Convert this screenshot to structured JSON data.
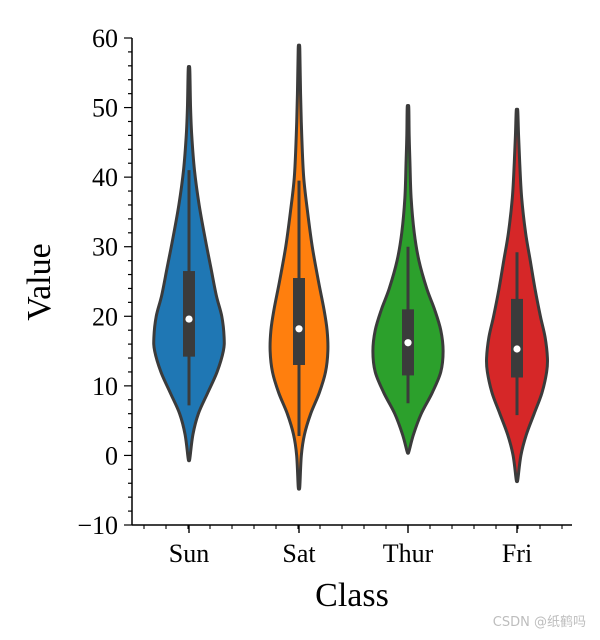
{
  "chart_data": {
    "type": "violin",
    "xlabel": "Class",
    "ylabel": "Value",
    "ylim": [
      -10,
      60
    ],
    "yticks": [
      -10,
      0,
      10,
      20,
      30,
      40,
      50,
      60
    ],
    "ytick_labels": [
      "−10",
      "0",
      "10",
      "20",
      "30",
      "40",
      "50",
      "60"
    ],
    "categories": [
      "Sun",
      "Sat",
      "Thur",
      "Fri"
    ],
    "series": [
      {
        "name": "Sun",
        "color": "#1f77b4",
        "min": -0.5,
        "max": 55.5,
        "q1": 14.2,
        "median": 19.6,
        "q3": 26.5,
        "whisker_low": 7.2,
        "whisker_high": 41,
        "density": [
          [
            -0.5,
            0.01
          ],
          [
            3,
            0.05
          ],
          [
            6,
            0.12
          ],
          [
            9,
            0.24
          ],
          [
            12,
            0.36
          ],
          [
            15,
            0.44
          ],
          [
            17,
            0.45
          ],
          [
            20,
            0.42
          ],
          [
            23,
            0.35
          ],
          [
            27,
            0.28
          ],
          [
            31,
            0.21
          ],
          [
            36,
            0.13
          ],
          [
            41,
            0.07
          ],
          [
            46,
            0.035
          ],
          [
            50,
            0.02
          ],
          [
            55.5,
            0.01
          ]
        ]
      },
      {
        "name": "Sat",
        "color": "#ff7f0e",
        "min": -4.5,
        "max": 58.5,
        "q1": 13,
        "median": 18.2,
        "q3": 25.5,
        "whisker_low": 2.8,
        "whisker_high": 39.5,
        "density": [
          [
            -4.5,
            0.01
          ],
          [
            0,
            0.03
          ],
          [
            3,
            0.07
          ],
          [
            6,
            0.15
          ],
          [
            9,
            0.26
          ],
          [
            12,
            0.34
          ],
          [
            15,
            0.37
          ],
          [
            18,
            0.36
          ],
          [
            21,
            0.32
          ],
          [
            25,
            0.25
          ],
          [
            30,
            0.17
          ],
          [
            35,
            0.11
          ],
          [
            40,
            0.06
          ],
          [
            46,
            0.035
          ],
          [
            52,
            0.02
          ],
          [
            58.5,
            0.01
          ]
        ]
      },
      {
        "name": "Thur",
        "color": "#2ca02c",
        "min": 0.5,
        "max": 50,
        "q1": 11.5,
        "median": 16.2,
        "q3": 21,
        "whisker_low": 7.5,
        "whisker_high": 30,
        "density": [
          [
            0.5,
            0.01
          ],
          [
            3,
            0.07
          ],
          [
            6,
            0.17
          ],
          [
            9,
            0.31
          ],
          [
            12,
            0.42
          ],
          [
            15,
            0.45
          ],
          [
            18,
            0.42
          ],
          [
            21,
            0.34
          ],
          [
            24,
            0.24
          ],
          [
            28,
            0.14
          ],
          [
            32,
            0.08
          ],
          [
            37,
            0.04
          ],
          [
            42,
            0.025
          ],
          [
            46,
            0.015
          ],
          [
            50,
            0.01
          ]
        ]
      },
      {
        "name": "Fri",
        "color": "#d62728",
        "min": -3.5,
        "max": 49.5,
        "q1": 11.2,
        "median": 15.3,
        "q3": 22.5,
        "whisker_low": 5.8,
        "whisker_high": 29.2,
        "density": [
          [
            -3.5,
            0.01
          ],
          [
            0,
            0.05
          ],
          [
            3,
            0.12
          ],
          [
            6,
            0.22
          ],
          [
            9,
            0.32
          ],
          [
            12,
            0.38
          ],
          [
            14,
            0.39
          ],
          [
            17,
            0.36
          ],
          [
            20,
            0.3
          ],
          [
            24,
            0.23
          ],
          [
            28,
            0.17
          ],
          [
            32,
            0.11
          ],
          [
            37,
            0.06
          ],
          [
            42,
            0.035
          ],
          [
            46,
            0.02
          ],
          [
            49.5,
            0.01
          ]
        ]
      }
    ]
  },
  "watermark": "CSDN @纸鹤吗"
}
